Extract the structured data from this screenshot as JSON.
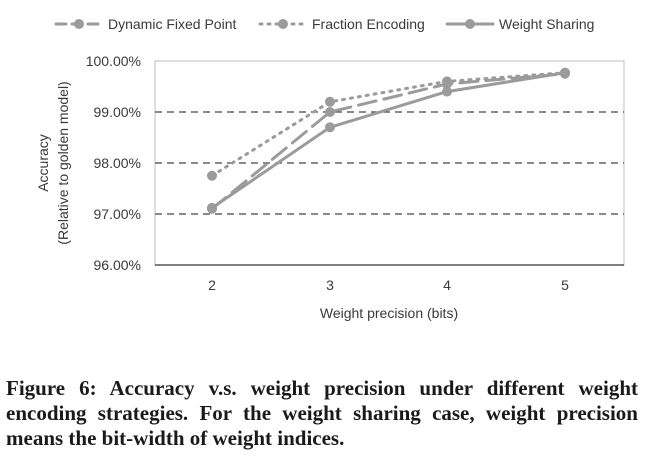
{
  "chart_data": {
    "type": "line",
    "title": "",
    "xlabel": "Weight precision (bits)",
    "ylabel": "Accuracy",
    "ylabel_sub": "(Relative to golden model)",
    "x": [
      2,
      3,
      4,
      5
    ],
    "x_tick_labels": [
      "2",
      "3",
      "4",
      "5"
    ],
    "ylim": [
      96,
      100
    ],
    "y_ticks": [
      96,
      97,
      98,
      99,
      100
    ],
    "y_tick_labels": [
      "96.00%",
      "97.00%",
      "98.00%",
      "99.00%",
      "100.00%"
    ],
    "grid": "horizontal dashed",
    "legend_position": "top",
    "series": [
      {
        "name": "Dynamic Fixed Point",
        "values": [
          97.1,
          99.0,
          99.55,
          99.75
        ],
        "color": "#9b9b9b",
        "line_style": "dashed"
      },
      {
        "name": "Fraction Encoding",
        "values": [
          97.75,
          99.2,
          99.6,
          99.77
        ],
        "color": "#9b9b9b",
        "line_style": "dotted"
      },
      {
        "name": "Weight Sharing",
        "values": [
          97.12,
          98.7,
          99.4,
          99.77
        ],
        "color": "#9b9b9b",
        "line_style": "solid"
      }
    ]
  },
  "caption": "Figure 6: Accuracy v.s. weight precision under different weight encoding strategies. For the weight sharing case, weight precision means the bit-width of weight indices."
}
